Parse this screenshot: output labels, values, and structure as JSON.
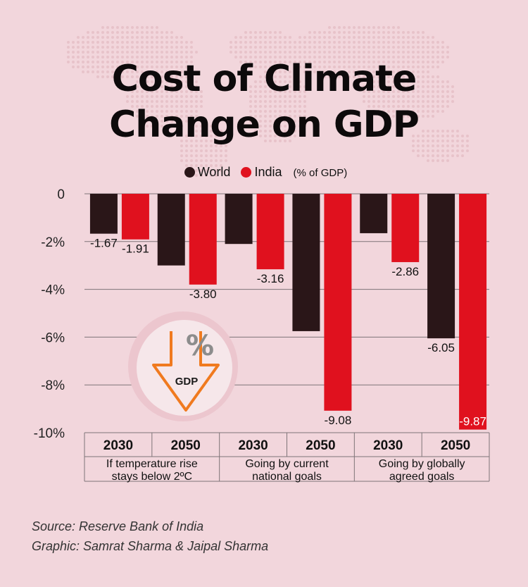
{
  "title_line1": "Cost of Climate",
  "title_line2": "Change on GDP",
  "legend": {
    "world": "World",
    "india": "India",
    "unit": "(% of GDP)",
    "world_color": "#2a1618",
    "india_color": "#e0111e"
  },
  "icon": {
    "name": "gdp-down-arrow-percent-icon",
    "percent_symbol": "%",
    "label": "GDP"
  },
  "chart_data": {
    "type": "bar",
    "yticks": [
      "0",
      "-2%",
      "-4%",
      "-6%",
      "-8%",
      "-10%"
    ],
    "ylim": [
      -10,
      0
    ],
    "grid": true,
    "categories": [
      {
        "year": "2030",
        "scenario": "If temperature rise stays below 2ºC"
      },
      {
        "year": "2050",
        "scenario": "If temperature rise stays below 2ºC"
      },
      {
        "year": "2030",
        "scenario": "Going by current national goals"
      },
      {
        "year": "2050",
        "scenario": "Going by current national goals"
      },
      {
        "year": "2030",
        "scenario": "Going by globally agreed goals"
      },
      {
        "year": "2050",
        "scenario": "Going by globally agreed goals"
      }
    ],
    "groups": [
      {
        "label_line1": "If temperature rise",
        "label_line2": "stays below 2ºC"
      },
      {
        "label_line1": "Going by current",
        "label_line2": "national goals"
      },
      {
        "label_line1": "Going by globally",
        "label_line2": "agreed goals"
      }
    ],
    "series": [
      {
        "name": "World",
        "color": "#2a1618",
        "values": [
          -1.67,
          -3.0,
          -2.1,
          -5.75,
          -1.65,
          -6.05
        ],
        "labels": [
          "-1.67",
          "",
          "",
          "",
          "",
          "-6.05"
        ]
      },
      {
        "name": "India",
        "color": "#e0111e",
        "values": [
          -1.91,
          -3.8,
          -3.16,
          -9.08,
          -2.86,
          -9.87
        ],
        "labels": [
          "-1.91",
          "-3.80",
          "-3.16",
          "-9.08",
          "-2.86",
          "-9.87"
        ]
      }
    ]
  },
  "source": "Source: Reserve Bank of India",
  "credit": "Graphic: Samrat Sharma & Jaipal Sharma"
}
